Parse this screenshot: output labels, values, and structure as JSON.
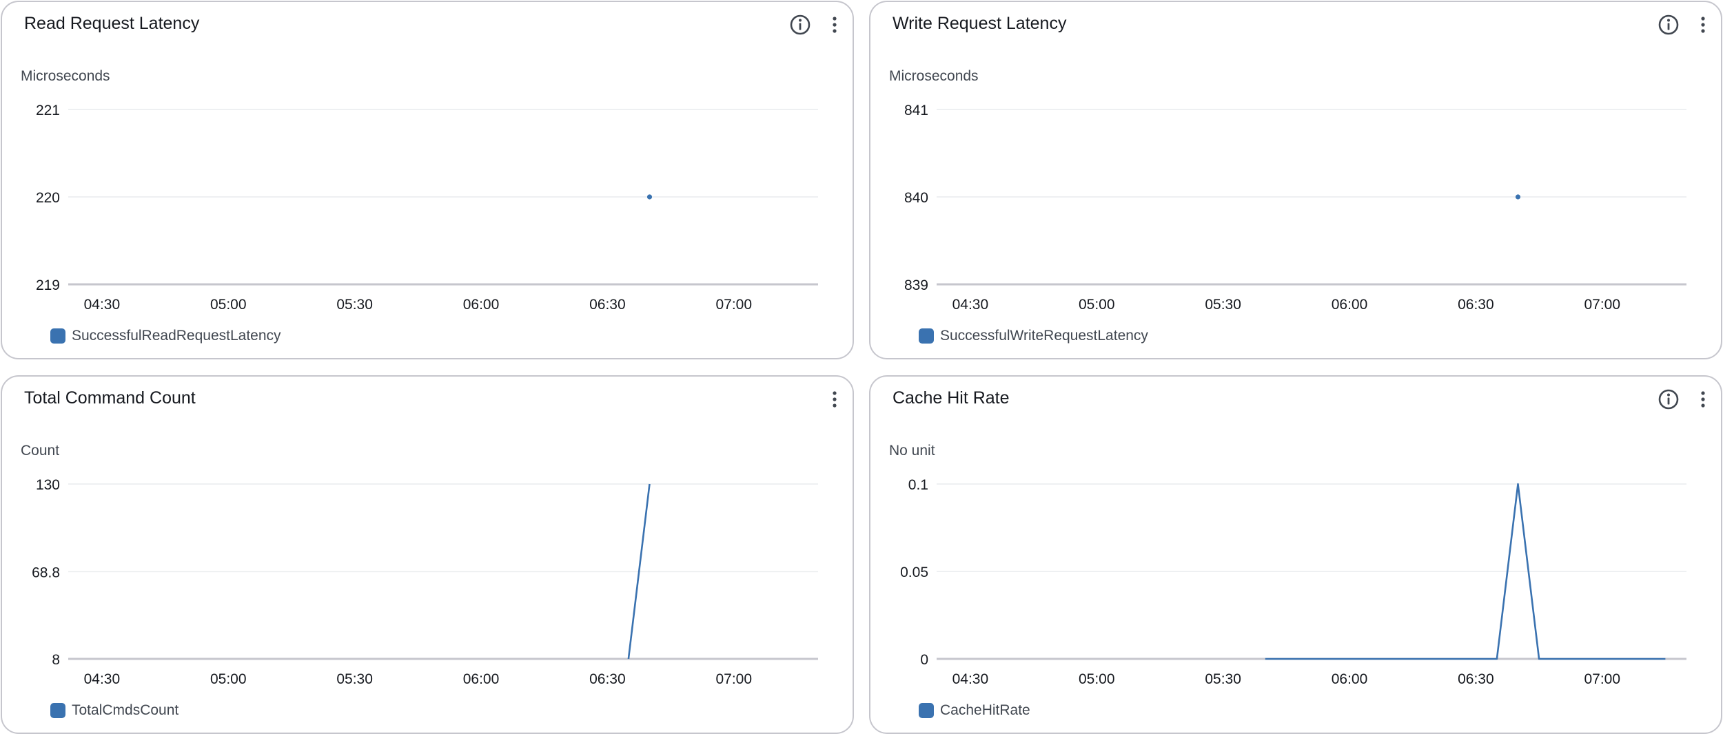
{
  "colors": {
    "series": "#3a72b0",
    "grid": "#e9ebed",
    "axis": "#c6c6cd",
    "text": "#16191f"
  },
  "widgets": [
    {
      "title": "Read Request Latency",
      "unit": "Microseconds",
      "has_info": true,
      "info_icon": "info-icon",
      "menu_icon": "more-vertical-icon",
      "legend": "SuccessfulReadRequestLatency"
    },
    {
      "title": "Write Request Latency",
      "unit": "Microseconds",
      "has_info": true,
      "info_icon": "info-icon",
      "menu_icon": "more-vertical-icon",
      "legend": "SuccessfulWriteRequestLatency"
    },
    {
      "title": "Total Command Count",
      "unit": "Count",
      "has_info": false,
      "menu_icon": "more-vertical-icon",
      "legend": "TotalCmdsCount"
    },
    {
      "title": "Cache Hit Rate",
      "unit": "No unit",
      "has_info": true,
      "info_icon": "info-icon",
      "menu_icon": "more-vertical-icon",
      "legend": "CacheHitRate"
    }
  ],
  "chart_data": [
    {
      "type": "scatter",
      "title": "Read Request Latency",
      "ylabel": "Microseconds",
      "ylim": [
        219,
        221
      ],
      "yticks": [
        "221",
        "220",
        "219"
      ],
      "ytick_values": [
        221,
        220,
        219
      ],
      "xlim": [
        "04:22",
        "07:20"
      ],
      "xticks": [
        "04:30",
        "05:00",
        "05:30",
        "06:00",
        "06:30",
        "07:00"
      ],
      "grid": true,
      "legend_position": "bottom-left",
      "series": [
        {
          "name": "SuccessfulReadRequestLatency",
          "mode": "markers",
          "x": [
            "06:40"
          ],
          "y": [
            220
          ]
        }
      ]
    },
    {
      "type": "scatter",
      "title": "Write Request Latency",
      "ylabel": "Microseconds",
      "ylim": [
        839,
        841
      ],
      "yticks": [
        "841",
        "840",
        "839"
      ],
      "ytick_values": [
        841,
        840,
        839
      ],
      "xlim": [
        "04:22",
        "07:20"
      ],
      "xticks": [
        "04:30",
        "05:00",
        "05:30",
        "06:00",
        "06:30",
        "07:00"
      ],
      "grid": true,
      "legend_position": "bottom-left",
      "series": [
        {
          "name": "SuccessfulWriteRequestLatency",
          "mode": "markers",
          "x": [
            "06:40"
          ],
          "y": [
            840
          ]
        }
      ]
    },
    {
      "type": "line",
      "title": "Total Command Count",
      "ylabel": "Count",
      "ylim": [
        8,
        130
      ],
      "yticks": [
        "130",
        "68.8",
        "8"
      ],
      "ytick_values": [
        130,
        68.8,
        8
      ],
      "xlim": [
        "04:22",
        "07:20"
      ],
      "xticks": [
        "04:30",
        "05:00",
        "05:30",
        "06:00",
        "06:30",
        "07:00"
      ],
      "grid": true,
      "legend_position": "bottom-left",
      "series": [
        {
          "name": "TotalCmdsCount",
          "mode": "line",
          "x": [
            "06:35",
            "06:40"
          ],
          "y": [
            8,
            130
          ]
        }
      ]
    },
    {
      "type": "line",
      "title": "Cache Hit Rate",
      "ylabel": "No unit",
      "ylim": [
        0,
        0.1
      ],
      "yticks": [
        "0.1",
        "0.05",
        "0"
      ],
      "ytick_values": [
        0.1,
        0.05,
        0
      ],
      "xlim": [
        "04:22",
        "07:20"
      ],
      "xticks": [
        "04:30",
        "05:00",
        "05:30",
        "06:00",
        "06:30",
        "07:00"
      ],
      "grid": true,
      "legend_position": "bottom-left",
      "series": [
        {
          "name": "CacheHitRate",
          "mode": "line",
          "x": [
            "05:40",
            "06:35",
            "06:40",
            "06:45",
            "07:15"
          ],
          "y": [
            0,
            0,
            0.1,
            0,
            0
          ]
        }
      ]
    }
  ]
}
